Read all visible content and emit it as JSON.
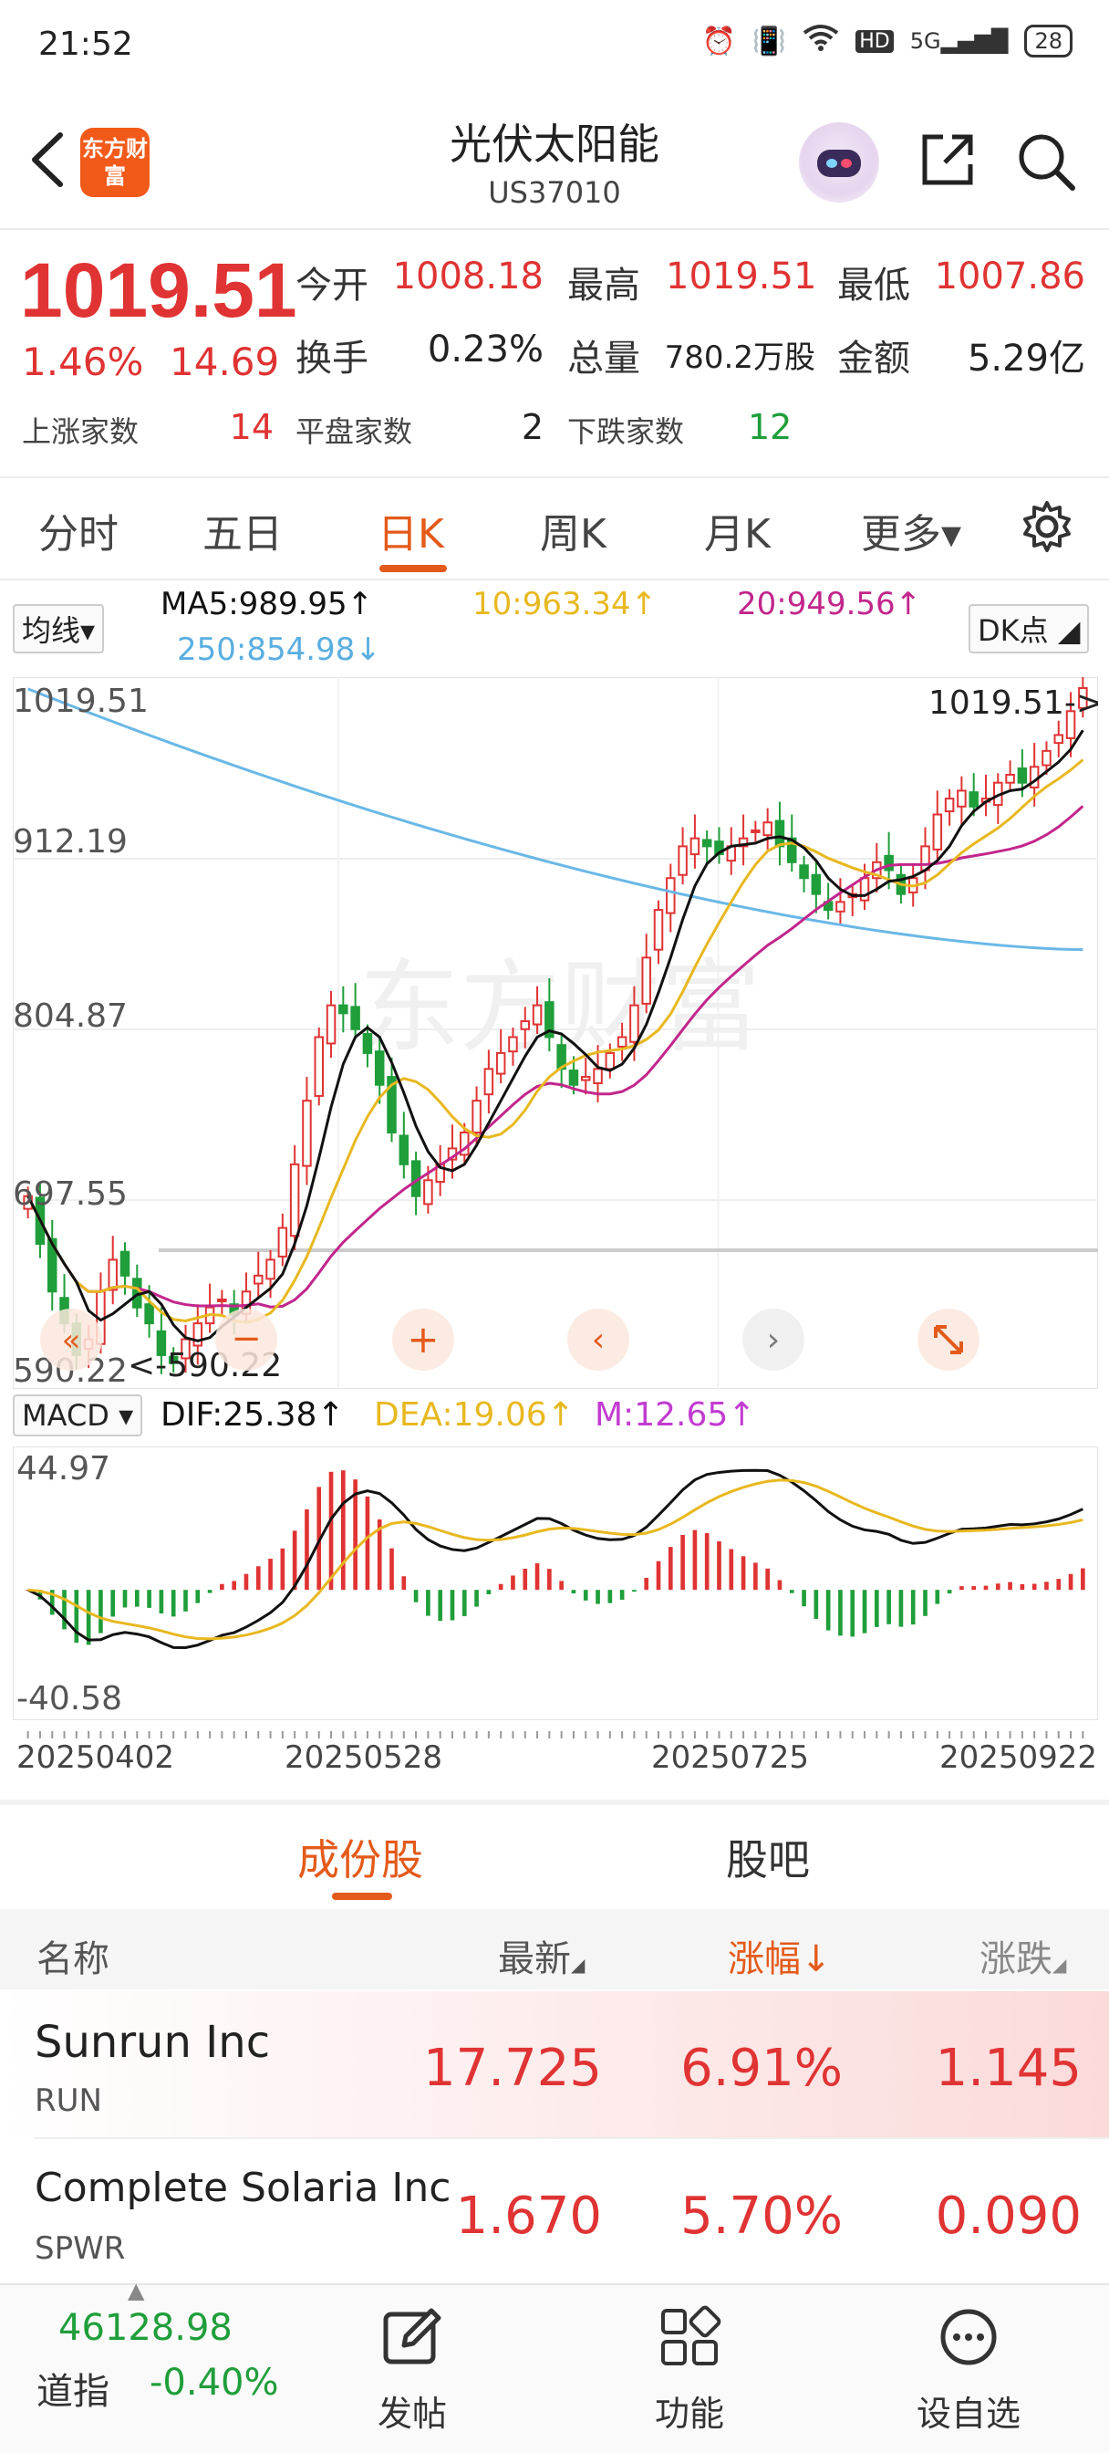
{
  "status_bar": {
    "time": "21:52",
    "network": "5G",
    "hd": "HD",
    "battery": "28"
  },
  "header": {
    "title": "光伏太阳能",
    "code": "US37010",
    "logo_text": "东方财富"
  },
  "quote": {
    "price": "1019.51",
    "change_pct": "1.46%",
    "change": "14.69",
    "open_label": "今开",
    "open": "1008.18",
    "high_label": "最高",
    "high": "1019.51",
    "low_label": "最低",
    "low": "1007.86",
    "turnover_label": "换手",
    "turnover": "0.23%",
    "volume_label": "总量",
    "volume": "780.2万股",
    "amount_label": "金额",
    "amount": "5.29亿",
    "up_label": "上涨家数",
    "up_count": "14",
    "flat_label": "平盘家数",
    "flat_count": "2",
    "down_label": "下跌家数",
    "down_count": "12"
  },
  "tabs": [
    {
      "label": "分时"
    },
    {
      "label": "五日"
    },
    {
      "label": "日K"
    },
    {
      "label": "周K"
    },
    {
      "label": "月K"
    },
    {
      "label": "更多▾"
    }
  ],
  "active_tab": 2,
  "ma_legend": {
    "selector": "均线",
    "ma5": "MA5:989.95↑",
    "ma10": "10:963.34↑",
    "ma20": "20:949.56↑",
    "ma250": "250:854.98↓",
    "dk": "DK点"
  },
  "kchart_labels": {
    "y_ticks": [
      "1019.51",
      "912.19",
      "804.87",
      "697.55",
      "590.22"
    ],
    "high_marker": "1019.51->",
    "low_marker": "<-590.22"
  },
  "macd_legend": {
    "selector": "MACD",
    "dif": "DIF:25.38↑",
    "dea": "DEA:19.06↑",
    "m": "M:12.65↑",
    "top": "44.97",
    "bottom": "-40.58"
  },
  "dates": [
    "20250402",
    "20250528",
    "20250725",
    "20250922"
  ],
  "subtabs": [
    {
      "label": "成份股"
    },
    {
      "label": "股吧"
    }
  ],
  "list_header": {
    "name": "名称",
    "latest": "最新",
    "change_pct": "涨幅↓",
    "change": "涨跌"
  },
  "rows": [
    {
      "name": "Sunrun Inc",
      "symbol": "RUN",
      "latest": "17.725",
      "change_pct": "6.91%",
      "change": "1.145"
    },
    {
      "name": "Complete Solaria Inc",
      "symbol": "SPWR",
      "latest": "1.670",
      "change_pct": "5.70%",
      "change": "0.090"
    }
  ],
  "bottom_nav": {
    "index_value": "46128.98",
    "index_name": "道指",
    "index_change": "-0.40%",
    "post": "发帖",
    "functions": "功能",
    "watchlist": "设自选"
  },
  "colors": {
    "up": "#e03333",
    "down": "#1f9e3a",
    "accent": "#e45a1a",
    "ma5": "#111111",
    "ma10": "#e8b820",
    "ma20": "#c2268c",
    "ma250": "#6ab8e6"
  },
  "chart_data": {
    "type": "candlestick",
    "ylim": [
      590.22,
      1019.51
    ],
    "x_ticks": [
      "20250402",
      "20250528",
      "20250725",
      "20250922"
    ],
    "close": [
      700,
      670,
      640,
      620,
      600,
      610,
      640,
      660,
      650,
      630,
      620,
      600,
      595,
      610,
      620,
      630,
      635,
      625,
      640,
      650,
      660,
      680,
      720,
      760,
      800,
      820,
      815,
      805,
      790,
      770,
      740,
      720,
      700,
      710,
      720,
      730,
      740,
      760,
      780,
      790,
      800,
      810,
      820,
      800,
      780,
      770,
      775,
      780,
      790,
      800,
      820,
      850,
      880,
      900,
      920,
      925,
      920,
      915,
      920,
      925,
      930,
      935,
      920,
      910,
      900,
      890,
      880,
      885,
      890,
      900,
      910,
      905,
      890,
      900,
      920,
      940,
      950,
      955,
      945,
      950,
      960,
      965,
      960,
      970,
      980,
      990,
      1005,
      1019.51
    ],
    "ma250_start": 1019,
    "ma250_end": 855,
    "macd_range": [
      -40.58,
      44.97
    ]
  }
}
